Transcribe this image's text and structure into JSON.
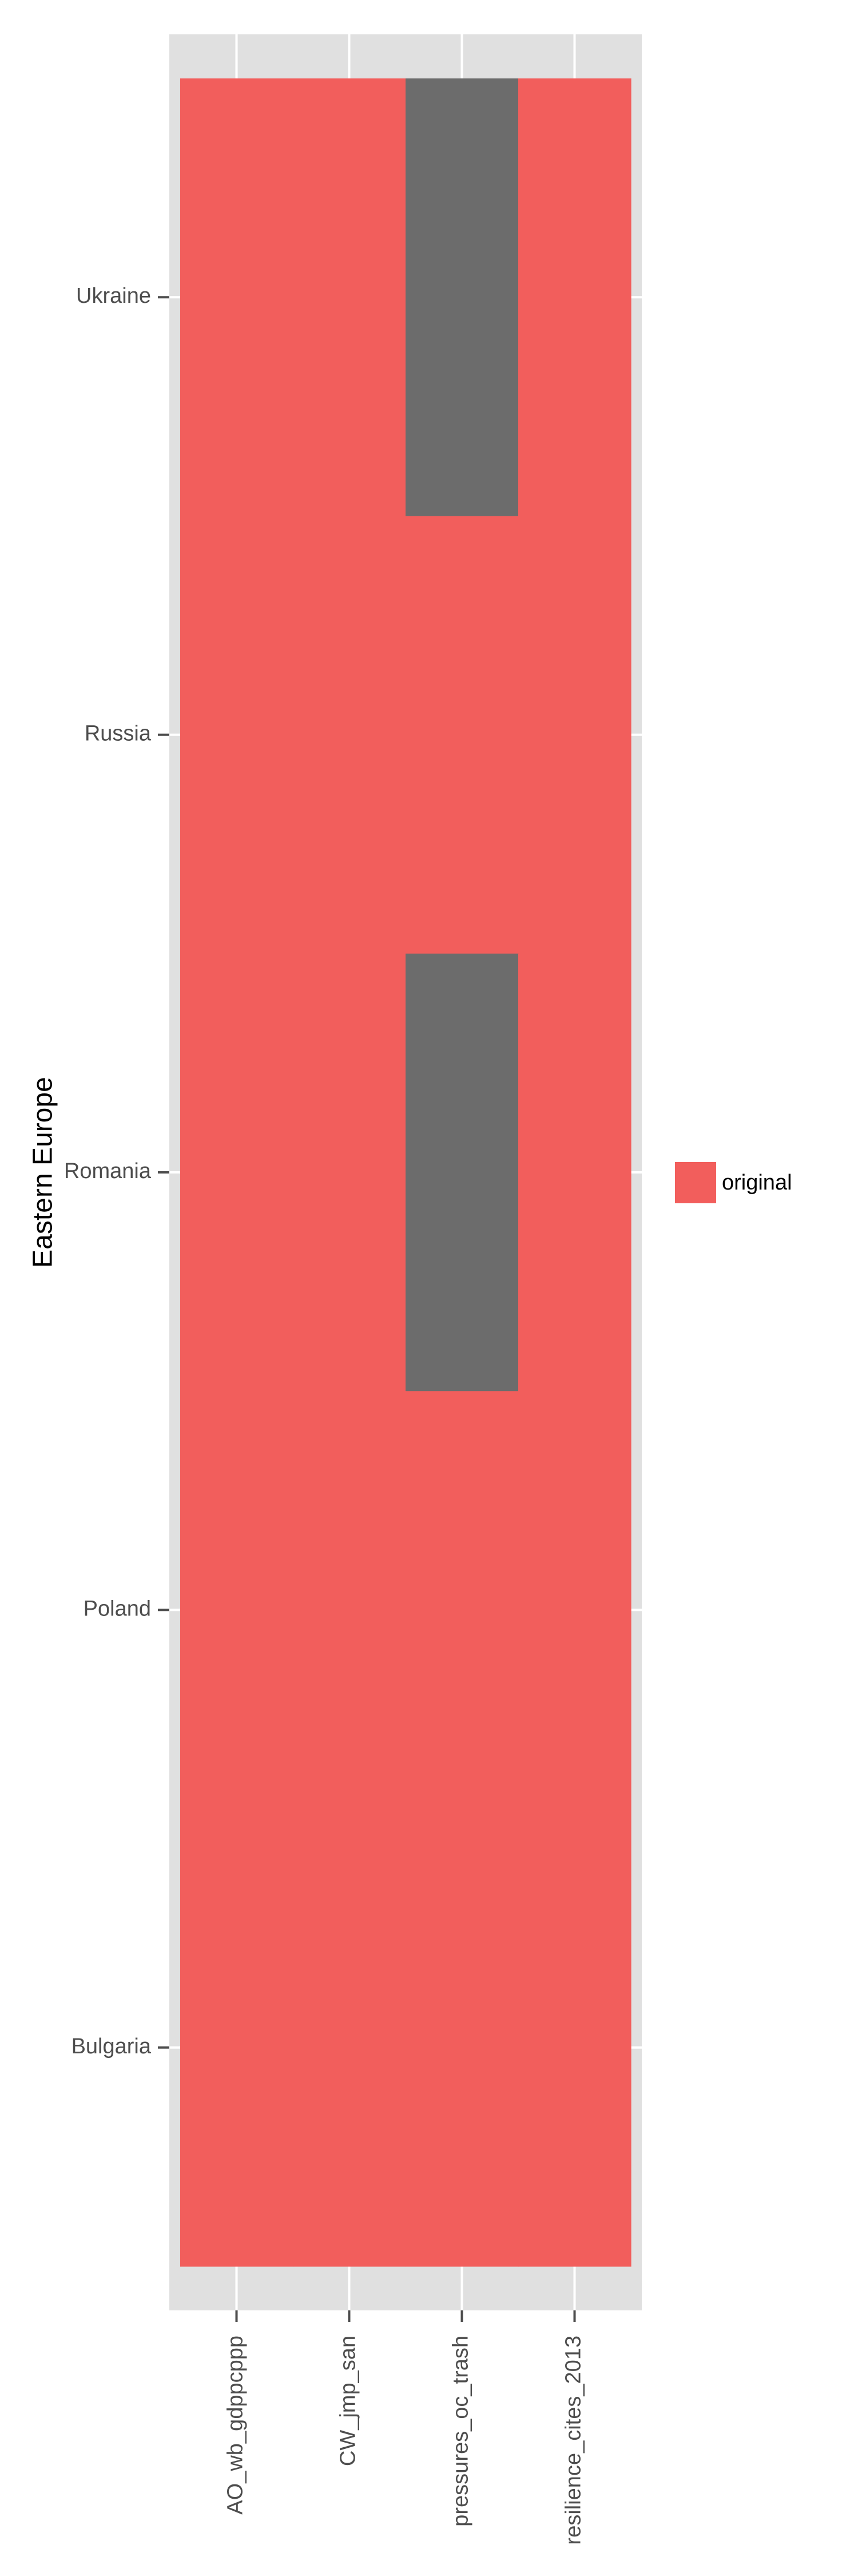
{
  "chart_data": {
    "type": "heatmap",
    "title": "",
    "xlabel": "",
    "ylabel": "Eastern Europe",
    "x_categories": [
      "AO_wb_gdppcppp",
      "CW_jmp_san",
      "pressures_oc_trash",
      "resilience_cites_2013"
    ],
    "y_categories": [
      "Ukraine",
      "Russia",
      "Romania",
      "Poland",
      "Bulgaria"
    ],
    "cells": [
      [
        "original",
        "original",
        null,
        "original"
      ],
      [
        "original",
        "original",
        "original",
        "original"
      ],
      [
        "original",
        "original",
        null,
        "original"
      ],
      [
        "original",
        "original",
        "original",
        "original"
      ],
      [
        "original",
        "original",
        "original",
        "original"
      ]
    ],
    "legend": {
      "position": "right",
      "entries": [
        {
          "label": "original",
          "color": "#F25E5C"
        }
      ]
    },
    "na_color": "#6C6C6C",
    "panel_background": "#E0E0E0",
    "grid": true
  }
}
